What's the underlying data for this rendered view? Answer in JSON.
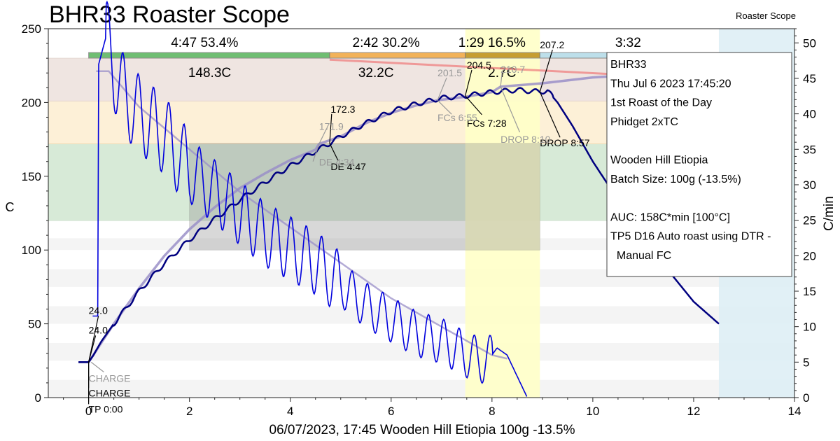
{
  "app": {
    "title": "BHR33 Roaster Scope",
    "corner_label": "Roaster Scope"
  },
  "axes": {
    "x_title": "06/07/2023, 17:45 Wooden Hill Etiopia   100g   -13.5%",
    "y_left_title": "C",
    "y_right_title": "C/min",
    "x_range": [
      -0.8,
      14
    ],
    "x_ticks": [
      0,
      2,
      4,
      6,
      8,
      10,
      12,
      14
    ],
    "y_left_range": [
      0,
      250
    ],
    "y_left_ticks": [
      0,
      50,
      100,
      150,
      200,
      250
    ],
    "y_right_range": [
      0,
      52
    ],
    "y_right_ticks": [
      0,
      5,
      10,
      15,
      20,
      25,
      30,
      35,
      40,
      45,
      50
    ]
  },
  "phases": [
    {
      "time": "4:47",
      "pct": "53.4%",
      "delta": "148.3C",
      "color": "#4caf50"
    },
    {
      "time": "2:42",
      "pct": "30.2%",
      "delta": "32.2C",
      "color": "#f0a030"
    },
    {
      "time": "1:29",
      "pct": "16.5%",
      "delta": "2.7C",
      "color": "#b8860b"
    },
    {
      "time": "3:32",
      "pct": "",
      "delta": "",
      "color": "#add8e6"
    }
  ],
  "info_box": {
    "lines": [
      "BHR33",
      "Thu Jul 6 2023 17:45:20",
      "1st Roast of the Day",
      "Phidget 2xTC",
      "",
      "Wooden Hill Etiopia",
      "Batch Size: 100g (-13.5%)",
      "",
      "AUC: 158C*min [100°C]",
      "TP5 D16 Auto roast using DTR -",
      "  Manual FC"
    ]
  },
  "colors": {
    "bean_temp": "#000080",
    "ror": "#0000dd",
    "background_profile": "#9a8fc8",
    "band_green": "#d7ead7",
    "band_orange": "#fdf0d7",
    "band_brown": "#efe5e1",
    "band_yellow": "#ffffc8",
    "band_blue": "#dcedf5"
  },
  "chart_data": {
    "type": "line",
    "title": "BHR33 Roaster Scope",
    "xlabel": "06/07/2023, 17:45 Wooden Hill Etiopia   100g   -13.5%",
    "ylabel": "C",
    "ylabel_right": "C/min",
    "xlim": [
      -0.8,
      14
    ],
    "ylim": [
      0,
      250
    ],
    "ylim_right": [
      0,
      52
    ],
    "grid": false,
    "series": [
      {
        "axis": "left",
        "x": [
          -0.2,
          0,
          0.1,
          0.25,
          0.5,
          0.75,
          1,
          1.5,
          2,
          2.5,
          3,
          3.5,
          4,
          4.5,
          4.78,
          5,
          5.5,
          6,
          6.5,
          7,
          7.47,
          8,
          8.5,
          8.95,
          9.1,
          9.3,
          9.6,
          10,
          10.5,
          11,
          11.5,
          12,
          12.5
        ],
        "y": [
          24,
          24,
          29,
          38,
          50,
          61,
          72,
          91,
          107,
          121,
          134,
          146,
          157,
          167,
          172.3,
          177,
          186,
          194,
          199,
          203,
          204.5,
          207,
          208.5,
          207.2,
          208,
          200,
          184,
          160,
          134,
          108,
          86,
          65,
          50
        ]
      },
      {
        "axis": "right",
        "x": [
          0.05,
          0.2,
          0.35,
          0.5,
          0.75,
          1,
          1.5,
          2,
          2.5,
          3,
          3.5,
          4,
          4.5,
          5,
          5.5,
          6,
          6.5,
          7,
          7.5,
          7.9,
          8.1,
          8.3,
          8.5,
          8.7
        ],
        "y": [
          24,
          47,
          51,
          46,
          42,
          40,
          37,
          32,
          29,
          26,
          23,
          21,
          19,
          16,
          13,
          11,
          9,
          8,
          6,
          5,
          7,
          6,
          3,
          0
        ]
      },
      {
        "axis": "left",
        "x": [
          0,
          0.5,
          1,
          1.5,
          2,
          2.5,
          3,
          3.5,
          4,
          4.5,
          4.57,
          5,
          5.5,
          6,
          6.5,
          6.92,
          7.5,
          8,
          8.17,
          9,
          10,
          10.5
        ],
        "y": [
          24,
          50,
          74,
          96,
          114,
          129,
          142,
          152,
          161,
          168,
          171.9,
          177,
          186,
          193,
          198,
          201.5,
          204,
          207,
          210.7,
          213,
          217,
          218
        ]
      },
      {
        "axis": "right",
        "x": [
          0.15,
          0.4,
          1,
          2,
          3,
          4,
          5,
          6,
          7,
          8,
          8.3
        ],
        "y": [
          46,
          46,
          41,
          35,
          29,
          24,
          19,
          14,
          10,
          6,
          5.5
        ]
      }
    ],
    "events": [
      {
        "label": "CHARGE",
        "time": "0:00",
        "temp": 24.0
      },
      {
        "label": "TP",
        "time": "0:00",
        "temp": 24.0
      },
      {
        "label": "DE",
        "time": "4:47",
        "temp": 172.3
      },
      {
        "label": "FCs",
        "time": "7:28",
        "temp": 204.5
      },
      {
        "label": "DROP",
        "time": "8:57",
        "temp": 207.2
      }
    ],
    "background_events": [
      {
        "label": "CHARGE",
        "time": "",
        "temp": 24.0
      },
      {
        "label": "DE",
        "time": "4:34",
        "temp": 171.9
      },
      {
        "label": "FCs",
        "time": "6:55",
        "temp": 201.5
      },
      {
        "label": "DROP",
        "time": "8:10",
        "temp": 210.7
      }
    ],
    "phase_bands_celsius": [
      [
        120,
        172
      ],
      [
        172,
        201
      ],
      [
        201,
        230
      ]
    ],
    "time_bands_min": {
      "first_crack": [
        7.47,
        8.95
      ],
      "cooling": [
        12.5,
        14
      ]
    }
  }
}
